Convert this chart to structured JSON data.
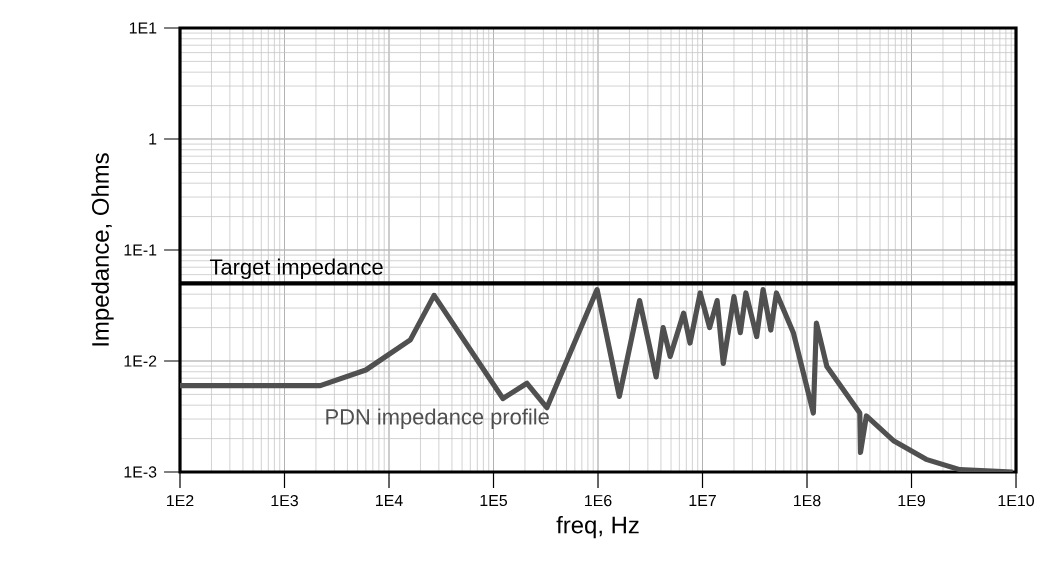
{
  "chart_data": {
    "type": "line",
    "xlabel": "freq, Hz",
    "ylabel": "Impedance, Ohms",
    "log": "xy",
    "grid": true,
    "legend": false,
    "marker": "none",
    "line_style": "solid",
    "xlim": [
      100,
      10000000000
    ],
    "ylim": [
      0.001,
      10
    ],
    "xticks": [
      {
        "value": 100,
        "label": "1E2"
      },
      {
        "value": 1000,
        "label": "1E3"
      },
      {
        "value": 10000,
        "label": "1E4"
      },
      {
        "value": 100000,
        "label": "1E5"
      },
      {
        "value": 1000000,
        "label": "1E6"
      },
      {
        "value": 10000000,
        "label": "1E7"
      },
      {
        "value": 100000000,
        "label": "1E8"
      },
      {
        "value": 1000000000,
        "label": "1E9"
      },
      {
        "value": 10000000000,
        "label": "1E10"
      }
    ],
    "yticks": [
      {
        "value": 0.001,
        "label": "1E-3"
      },
      {
        "value": 0.01,
        "label": "1E-2"
      },
      {
        "value": 0.1,
        "label": "1E-1"
      },
      1,
      {
        "value": 10,
        "label": "1E1"
      }
    ],
    "ref_lines": [
      {
        "axis": "y",
        "value": 0.05,
        "label": "Target impedance",
        "color": "#000000"
      }
    ],
    "series": [
      {
        "name": "PDN impedance profile",
        "color": "#505050",
        "x": [
          100,
          2200,
          6000,
          16000,
          27000,
          123000,
          209000,
          324000,
          980000,
          1600000,
          2500000,
          3600000,
          4200000,
          4900000,
          6600000,
          7600000,
          9500000,
          11700000,
          13800000,
          15800000,
          20000000,
          23000000,
          26000000,
          33000000,
          38000000,
          45000000,
          51000000,
          74000000,
          115000000,
          123000000,
          155000000,
          320000000,
          325000000,
          370000000,
          680000000,
          1380000000,
          2900000000,
          9300000000
        ],
        "values": [
          0.006,
          0.006,
          0.0083,
          0.0155,
          0.039,
          0.0046,
          0.0063,
          0.0038,
          0.044,
          0.0048,
          0.035,
          0.0072,
          0.02,
          0.011,
          0.027,
          0.0145,
          0.041,
          0.02,
          0.035,
          0.0095,
          0.038,
          0.018,
          0.041,
          0.0166,
          0.044,
          0.019,
          0.041,
          0.018,
          0.0034,
          0.022,
          0.0089,
          0.0034,
          0.0015,
          0.0032,
          0.0019,
          0.0013,
          0.00105,
          0.001
        ]
      }
    ]
  }
}
